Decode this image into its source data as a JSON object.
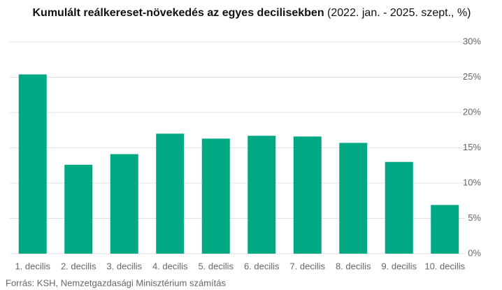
{
  "chart_data": {
    "type": "bar",
    "title": "Kumulált reálkereset-növekedés az egyes decilisekben",
    "subtitle": "(2022. jan. - 2025. szept., %)",
    "source": "Forrás: KSH, Nemzetgazdasági Minisztérium számítás",
    "categories": [
      "1. decilis",
      "2. decilis",
      "3. decilis",
      "4. decilis",
      "5. decilis",
      "6. decilis",
      "7. decilis",
      "8. decilis",
      "9. decilis",
      "10. decilis"
    ],
    "values": [
      25.4,
      12.6,
      14.1,
      17.0,
      16.3,
      16.7,
      16.6,
      15.7,
      13.0,
      6.9
    ],
    "color": "#00a884",
    "ylim": [
      0,
      30
    ],
    "yticks": [
      {
        "value": 0,
        "label": "0%"
      },
      {
        "value": 5,
        "label": "5%"
      },
      {
        "value": 10,
        "label": "10%"
      },
      {
        "value": 15,
        "label": "15%"
      },
      {
        "value": 20,
        "label": "20%"
      },
      {
        "value": 25,
        "label": "25%"
      },
      {
        "value": 30,
        "label": "30%"
      }
    ],
    "grid": true
  }
}
